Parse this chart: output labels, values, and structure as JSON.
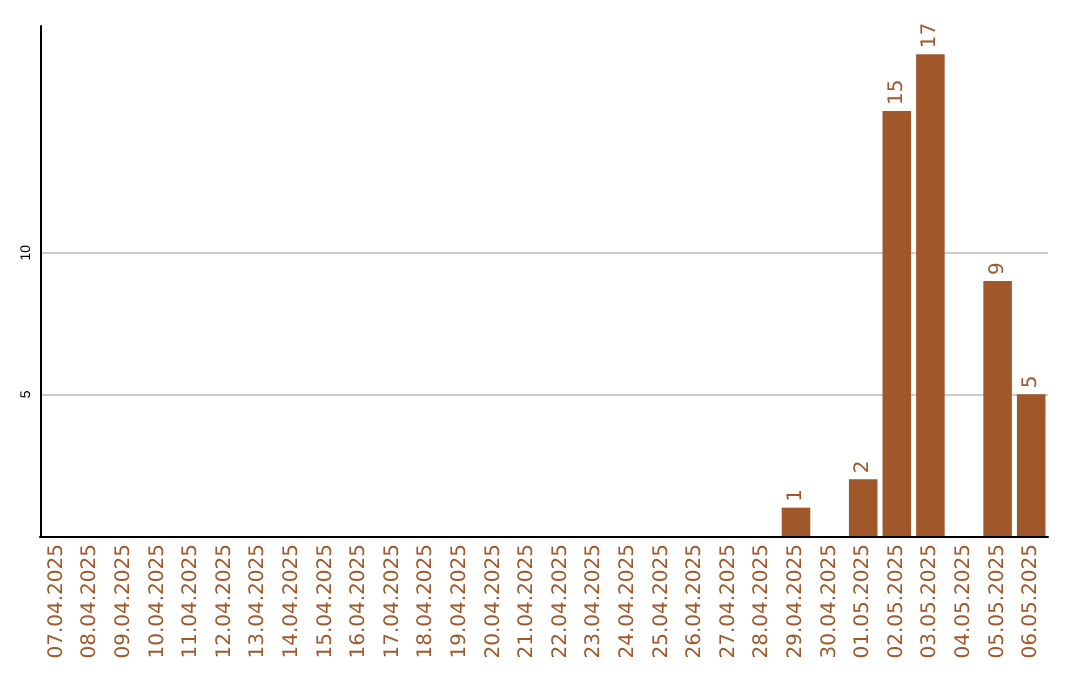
{
  "chart_data": {
    "type": "bar",
    "categories": [
      "07.04.2025",
      "08.04.2025",
      "09.04.2025",
      "10.04.2025",
      "11.04.2025",
      "12.04.2025",
      "13.04.2025",
      "14.04.2025",
      "15.04.2025",
      "16.04.2025",
      "17.04.2025",
      "18.04.2025",
      "19.04.2025",
      "20.04.2025",
      "21.04.2025",
      "22.04.2025",
      "23.04.2025",
      "24.04.2025",
      "25.04.2025",
      "26.04.2025",
      "27.04.2025",
      "28.04.2025",
      "29.04.2025",
      "30.04.2025",
      "01.05.2025",
      "02.05.2025",
      "03.05.2025",
      "04.05.2025",
      "05.05.2025",
      "06.05.2025"
    ],
    "values": [
      0,
      0,
      0,
      0,
      0,
      0,
      0,
      0,
      0,
      0,
      0,
      0,
      0,
      0,
      0,
      0,
      0,
      0,
      0,
      0,
      0,
      0,
      1,
      0,
      2,
      15,
      17,
      0,
      9,
      5
    ],
    "value_labels": [
      null,
      null,
      null,
      null,
      null,
      null,
      null,
      null,
      null,
      null,
      null,
      null,
      null,
      null,
      null,
      null,
      null,
      null,
      null,
      null,
      null,
      null,
      "1",
      null,
      "2",
      "15",
      "17",
      null,
      "9",
      "5"
    ],
    "color": "#a0582a",
    "ylim": [
      0,
      18
    ],
    "yticks": [
      5,
      10
    ],
    "grid": "y"
  }
}
